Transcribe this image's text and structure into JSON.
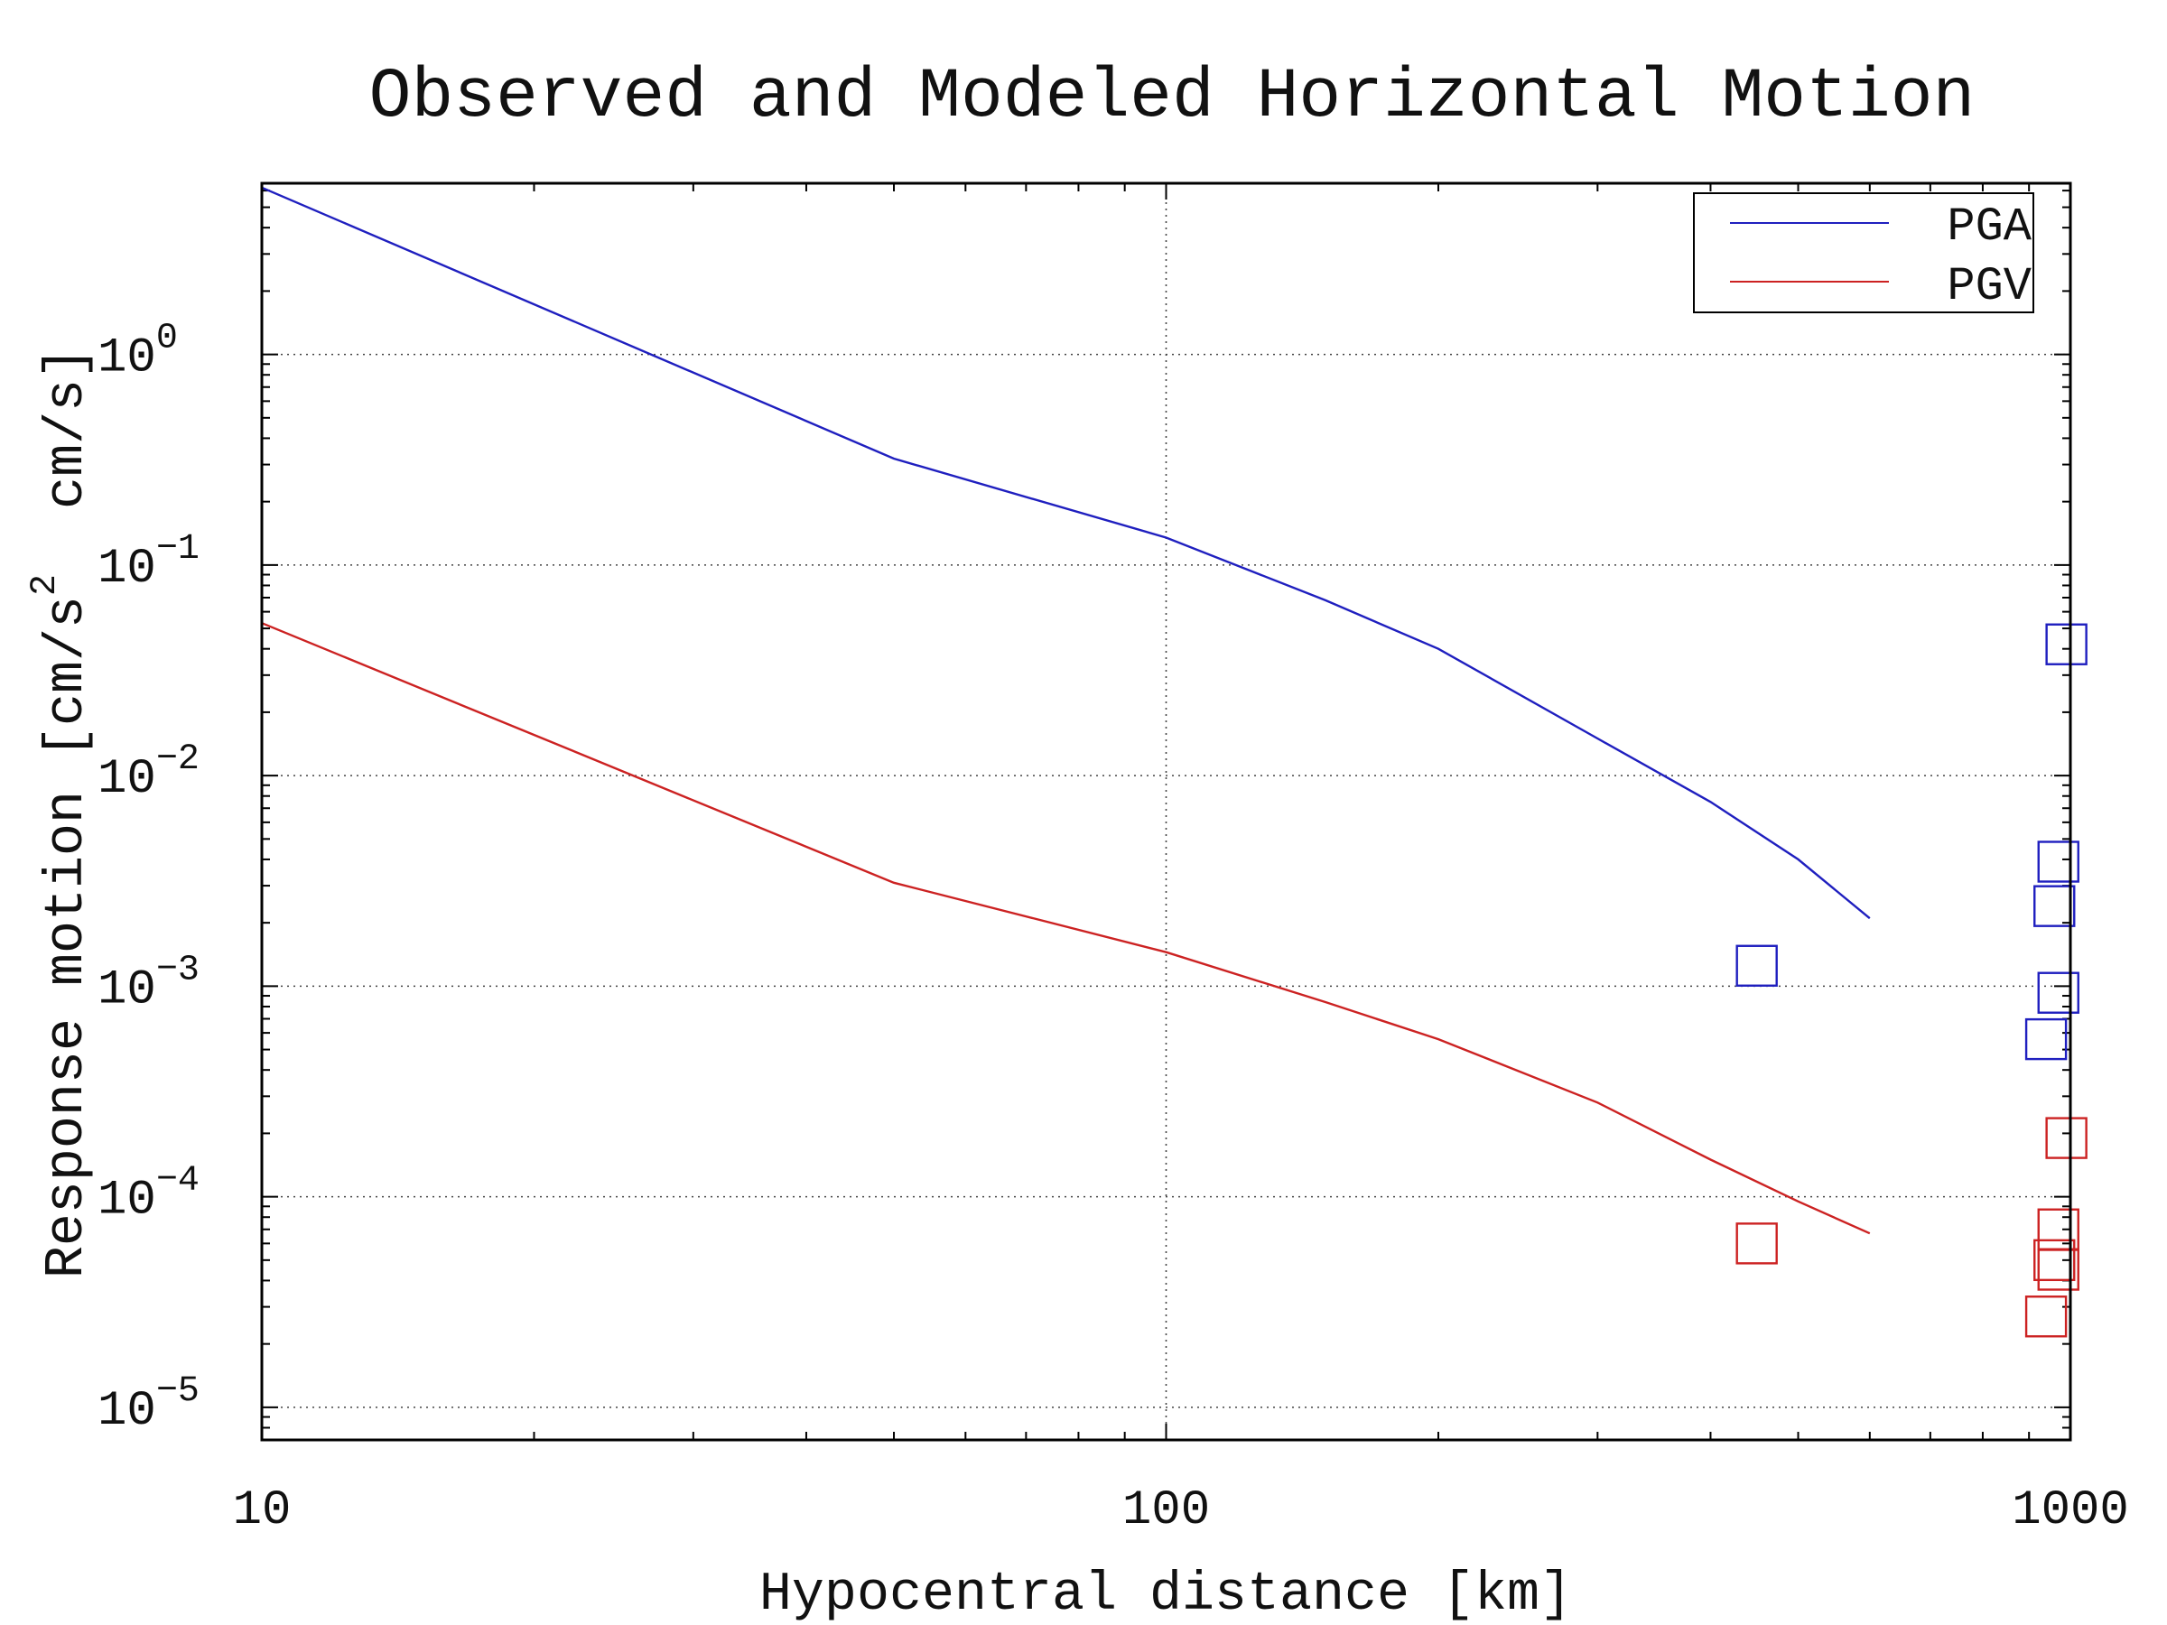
{
  "chart_data": {
    "type": "line",
    "title": "Observed and Modeled Horizontal Motion",
    "xlabel": "Hypocentral distance [km]",
    "ylabel": "Response motion [cm/s2 cm/s]",
    "ylabel_parts": {
      "prefix": "Response motion [cm/s",
      "superscript": "2",
      "suffix": "  cm/s]"
    },
    "x_scale": "log",
    "y_scale": "log",
    "xlim": [
      10,
      1000
    ],
    "ylim": [
      7e-06,
      6.5
    ],
    "x_ticks": [
      {
        "value": 10,
        "label": "10"
      },
      {
        "value": 100,
        "label": "100"
      },
      {
        "value": 1000,
        "label": "1000"
      }
    ],
    "y_ticks": [
      {
        "value": 1,
        "base": "10",
        "exp": "0"
      },
      {
        "value": 0.1,
        "base": "10",
        "exp": "−1"
      },
      {
        "value": 0.01,
        "base": "10",
        "exp": "−2"
      },
      {
        "value": 0.001,
        "base": "10",
        "exp": "−3"
      },
      {
        "value": 0.0001,
        "base": "10",
        "exp": "−4"
      },
      {
        "value": 1e-05,
        "base": "10",
        "exp": "−5"
      }
    ],
    "grid": true,
    "legend_position": "top-right",
    "series": [
      {
        "name": "PGA",
        "kind": "line",
        "color": "#1f1fbf",
        "x": [
          10,
          50,
          100,
          150,
          200,
          300,
          400,
          500,
          600
        ],
        "y": [
          6.2,
          0.32,
          0.135,
          0.068,
          0.04,
          0.015,
          0.0075,
          0.004,
          0.0021
        ]
      },
      {
        "name": "PGV",
        "kind": "line",
        "color": "#cc2222",
        "x": [
          10,
          50,
          100,
          150,
          200,
          300,
          400,
          500,
          600
        ],
        "y": [
          0.053,
          0.0031,
          0.00145,
          0.00084,
          0.00056,
          0.00028,
          0.00015,
          9.5e-05,
          6.7e-05
        ]
      },
      {
        "name": "",
        "kind": "scatter",
        "marker": "square",
        "color": "#1f1fbf",
        "x": [
          450,
          990,
          970,
          960,
          970,
          940
        ],
        "y": [
          0.00125,
          0.042,
          0.0039,
          0.0024,
          0.00093,
          0.00056
        ]
      },
      {
        "name": "",
        "kind": "scatter",
        "marker": "square",
        "color": "#cc2222",
        "x": [
          450,
          990,
          970,
          960,
          970,
          940
        ],
        "y": [
          6e-05,
          0.00019,
          7e-05,
          5e-05,
          4.5e-05,
          2.7e-05
        ]
      }
    ]
  }
}
